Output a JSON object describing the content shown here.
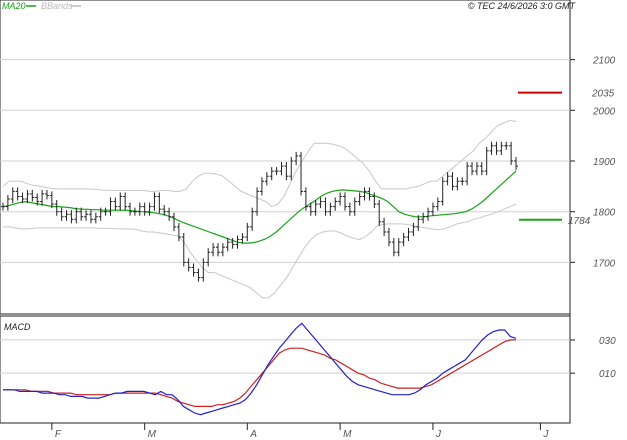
{
  "header": {
    "legend": [
      {
        "label": "MA20",
        "color": "#1aa31a"
      },
      {
        "label": "BBands",
        "color": "#bbbbbb"
      }
    ],
    "copyright": "© TEC 24/6/2026 3:0 GMT"
  },
  "colors": {
    "price": "#222222",
    "ma20": "#1aa31a",
    "bbands": "#c8c8c8",
    "grid": "#d0d0d0",
    "resistance": "#cc0000",
    "support": "#1aa31a",
    "macd": "#2222cc",
    "signal": "#cc2222"
  },
  "chart_data": [
    {
      "type": "ohlc",
      "ylim": [
        1610,
        2190
      ],
      "yticks": [
        1700,
        1800,
        1900,
        2000,
        2100
      ],
      "ytick_labels": [
        "1700",
        "1800",
        "1900",
        "2000",
        "2100"
      ],
      "xlim": [
        0,
        114
      ],
      "month_ticks": [
        {
          "label": "F",
          "x": 10
        },
        {
          "label": "M",
          "x": 29
        },
        {
          "label": "A",
          "x": 50
        },
        {
          "label": "M",
          "x": 69
        },
        {
          "label": "J",
          "x": 88
        },
        {
          "label": "J",
          "x": 110
        }
      ],
      "close": [
        1810,
        1825,
        1840,
        1830,
        1825,
        1835,
        1828,
        1820,
        1835,
        1832,
        1815,
        1800,
        1790,
        1795,
        1785,
        1800,
        1790,
        1795,
        1785,
        1790,
        1800,
        1800,
        1820,
        1810,
        1830,
        1810,
        1800,
        1800,
        1810,
        1800,
        1810,
        1830,
        1805,
        1800,
        1790,
        1770,
        1750,
        1700,
        1690,
        1680,
        1670,
        1700,
        1720,
        1730,
        1720,
        1730,
        1740,
        1735,
        1745,
        1750,
        1770,
        1800,
        1840,
        1860,
        1870,
        1880,
        1880,
        1890,
        1870,
        1900,
        1910,
        1840,
        1810,
        1800,
        1815,
        1820,
        1800,
        1810,
        1820,
        1830,
        1810,
        1800,
        1820,
        1830,
        1840,
        1830,
        1815,
        1780,
        1760,
        1740,
        1720,
        1740,
        1750,
        1760,
        1770,
        1785,
        1790,
        1800,
        1810,
        1820,
        1860,
        1870,
        1850,
        1860,
        1860,
        1890,
        1880,
        1890,
        1880,
        1920,
        1930,
        1920,
        1930,
        1930,
        1900,
        1890
      ],
      "spread": 16,
      "ma20": [
        1810,
        1812,
        1815,
        1818,
        1820,
        1818,
        1816,
        1814,
        1812,
        1810,
        1810,
        1809,
        1808,
        1806,
        1805,
        1805,
        1804,
        1804,
        1803,
        1803,
        1803,
        1803,
        1803,
        1802,
        1801,
        1800,
        1799,
        1798,
        1796,
        1794,
        1790,
        1785,
        1780,
        1776,
        1772,
        1768,
        1764,
        1760,
        1756,
        1752,
        1748,
        1744,
        1740,
        1738,
        1738,
        1739,
        1742,
        1746,
        1752,
        1760,
        1770,
        1780,
        1790,
        1800,
        1808,
        1815,
        1822,
        1830,
        1836,
        1840,
        1842,
        1843,
        1842,
        1841,
        1840,
        1838,
        1834,
        1830,
        1826,
        1820,
        1810,
        1800,
        1795,
        1792,
        1790,
        1790,
        1791,
        1792,
        1793,
        1794,
        1795,
        1796,
        1798,
        1800,
        1805,
        1812,
        1820,
        1830,
        1840,
        1850,
        1860,
        1870,
        1880
      ],
      "bb_upper": [
        1850,
        1860,
        1860,
        1860,
        1855,
        1852,
        1850,
        1848,
        1846,
        1845,
        1845,
        1845,
        1845,
        1845,
        1845,
        1844,
        1843,
        1842,
        1842,
        1842,
        1842,
        1842,
        1842,
        1842,
        1840,
        1840,
        1842,
        1842,
        1840,
        1840,
        1845,
        1860,
        1870,
        1876,
        1876,
        1874,
        1870,
        1860,
        1850,
        1840,
        1835,
        1830,
        1825,
        1820,
        1810,
        1815,
        1830,
        1855,
        1880,
        1900,
        1920,
        1935,
        1935,
        1935,
        1933,
        1930,
        1925,
        1915,
        1905,
        1895,
        1880,
        1860,
        1845,
        1845,
        1845,
        1845,
        1845,
        1848,
        1850,
        1855,
        1860,
        1860,
        1870,
        1880,
        1890,
        1900,
        1910,
        1920,
        1935,
        1945,
        1958,
        1970,
        1975,
        1980,
        1978
      ],
      "bb_lower": [
        1770,
        1770,
        1768,
        1766,
        1766,
        1767,
        1768,
        1768,
        1768,
        1768,
        1768,
        1768,
        1768,
        1768,
        1768,
        1768,
        1767,
        1767,
        1767,
        1766,
        1766,
        1766,
        1765,
        1762,
        1760,
        1760,
        1758,
        1756,
        1754,
        1752,
        1740,
        1720,
        1705,
        1690,
        1680,
        1680,
        1675,
        1670,
        1665,
        1660,
        1655,
        1650,
        1640,
        1630,
        1630,
        1640,
        1655,
        1670,
        1690,
        1710,
        1730,
        1745,
        1755,
        1760,
        1762,
        1762,
        1758,
        1752,
        1748,
        1745,
        1750,
        1760,
        1772,
        1775,
        1776,
        1776,
        1776,
        1775,
        1772,
        1770,
        1768,
        1766,
        1764,
        1766,
        1770,
        1775,
        1778,
        1780,
        1785,
        1788,
        1792,
        1795,
        1800,
        1805,
        1810,
        1815
      ]
    },
    {
      "type": "line",
      "title": "MACD",
      "ylim": [
        -17,
        42
      ],
      "yticks": [
        10,
        30
      ],
      "ytick_labels": [
        "010",
        "030"
      ],
      "macd": [
        0,
        0,
        0,
        -1,
        -1,
        -1,
        -1,
        -2,
        -2,
        -2,
        -3,
        -3,
        -4,
        -4,
        -4,
        -5,
        -5,
        -5,
        -4,
        -3,
        -2,
        -2,
        -1,
        -1,
        -1,
        -1,
        -2,
        -3,
        -1,
        -3,
        -3,
        -6,
        -10,
        -12,
        -14,
        -15,
        -14,
        -13,
        -12,
        -11,
        -10,
        -9,
        -8,
        -6,
        -2,
        3,
        9,
        15,
        20,
        25,
        29,
        33,
        37,
        40,
        36,
        32,
        28,
        24,
        20,
        16,
        12,
        8,
        5,
        3,
        2,
        1,
        0,
        -1,
        -2,
        -3,
        -3,
        -3,
        -3,
        -2,
        0,
        3,
        5,
        7,
        10,
        12,
        14,
        16,
        18,
        22,
        26,
        30,
        33,
        35,
        36,
        36,
        32,
        31
      ],
      "signal": [
        0,
        0,
        0,
        0,
        0,
        -1,
        -1,
        -1,
        -1,
        -2,
        -2,
        -2,
        -2,
        -3,
        -3,
        -3,
        -3,
        -3,
        -3,
        -3,
        -2,
        -2,
        -2,
        -2,
        -2,
        -2,
        -2,
        -2,
        -3,
        -4,
        -5,
        -7,
        -8,
        -9,
        -10,
        -10,
        -10,
        -10,
        -9,
        -9,
        -8,
        -7,
        -5,
        -2,
        2,
        6,
        10,
        14,
        18,
        22,
        24,
        25,
        25,
        25,
        24,
        23,
        22,
        21,
        19,
        18,
        16,
        14,
        12,
        10,
        9,
        7,
        6,
        4,
        3,
        2,
        1,
        1,
        1,
        1,
        1,
        2,
        3,
        5,
        7,
        9,
        11,
        13,
        15,
        17,
        19,
        21,
        23,
        25,
        27,
        29,
        30,
        30
      ],
      "signal_label": "",
      "macd_label": ""
    }
  ],
  "levels": [
    {
      "value": 2035,
      "label": "2035",
      "color": "#cc0000"
    },
    {
      "value": 1784,
      "label": "1784",
      "color": "#1aa31a"
    }
  ]
}
